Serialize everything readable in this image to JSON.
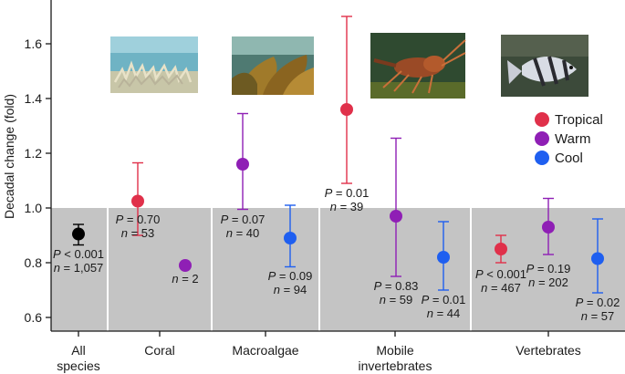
{
  "chart_data": {
    "type": "scatter",
    "ylabel": "Decadal change (fold)",
    "ylim": [
      0.55,
      1.75
    ],
    "yticks": [
      "0.6",
      "0.8",
      "1.0",
      "1.2",
      "1.4",
      "1.6"
    ],
    "ytick_values": [
      0.6,
      0.8,
      1.0,
      1.2,
      1.4,
      1.6
    ],
    "categories": [
      {
        "lines": [
          "All",
          "species"
        ]
      },
      {
        "lines": [
          "Coral"
        ]
      },
      {
        "lines": [
          "Macroalgae"
        ]
      },
      {
        "lines": [
          "Mobile",
          "invertebrates"
        ]
      },
      {
        "lines": [
          "Vertebrates"
        ]
      }
    ],
    "shaded_below": 1.0,
    "legend": {
      "placement": "right",
      "entries": [
        {
          "label": "Tropical",
          "color": "#e0304a"
        },
        {
          "label": "Warm",
          "color": "#8f1fb5"
        },
        {
          "label": "Cool",
          "color": "#1f5ff0"
        }
      ]
    },
    "series_colors": {
      "All": "#000000",
      "Tropical": "#e0304a",
      "Warm": "#8f1fb5",
      "Cool": "#1f5ff0"
    },
    "points": [
      {
        "group": "All species",
        "series": "All",
        "y": 0.905,
        "lo": 0.865,
        "hi": 0.94,
        "p_label": "P < 0.001",
        "n_label": "n = 1,057"
      },
      {
        "group": "Coral",
        "series": "Tropical",
        "y": 1.025,
        "lo": 0.9,
        "hi": 1.165,
        "p_label": "P = 0.70",
        "n_label": "n = 53"
      },
      {
        "group": "Coral",
        "series": "Warm",
        "y": 0.79,
        "lo": null,
        "hi": null,
        "p_label": "",
        "n_label": "n = 2"
      },
      {
        "group": "Macroalgae",
        "series": "Warm",
        "y": 1.16,
        "lo": 0.995,
        "hi": 1.345,
        "p_label": "P = 0.07",
        "n_label": "n = 40"
      },
      {
        "group": "Macroalgae",
        "series": "Cool",
        "y": 0.89,
        "lo": 0.785,
        "hi": 1.01,
        "p_label": "P = 0.09",
        "n_label": "n = 94"
      },
      {
        "group": "Mobile invertebrates",
        "series": "Tropical",
        "y": 1.36,
        "lo": 1.09,
        "hi": 1.7,
        "p_label": "P = 0.01",
        "n_label": "n = 39"
      },
      {
        "group": "Mobile invertebrates",
        "series": "Warm",
        "y": 0.97,
        "lo": 0.75,
        "hi": 1.255,
        "p_label": "P = 0.83",
        "n_label": "n = 59"
      },
      {
        "group": "Mobile invertebrates",
        "series": "Cool",
        "y": 0.82,
        "lo": 0.7,
        "hi": 0.95,
        "p_label": "P = 0.01",
        "n_label": "n = 44"
      },
      {
        "group": "Vertebrates",
        "series": "Tropical",
        "y": 0.85,
        "lo": 0.8,
        "hi": 0.9,
        "p_label": "P < 0.001",
        "n_label": "n = 467"
      },
      {
        "group": "Vertebrates",
        "series": "Warm",
        "y": 0.93,
        "lo": 0.83,
        "hi": 1.035,
        "p_label": "P = 0.19",
        "n_label": "n = 202"
      },
      {
        "group": "Vertebrates",
        "series": "Cool",
        "y": 0.815,
        "lo": 0.69,
        "hi": 0.96,
        "p_label": "P = 0.02",
        "n_label": "n = 57"
      }
    ],
    "photos": [
      {
        "subject": "coral"
      },
      {
        "subject": "macroalgae"
      },
      {
        "subject": "lobster"
      },
      {
        "subject": "fish"
      }
    ]
  }
}
